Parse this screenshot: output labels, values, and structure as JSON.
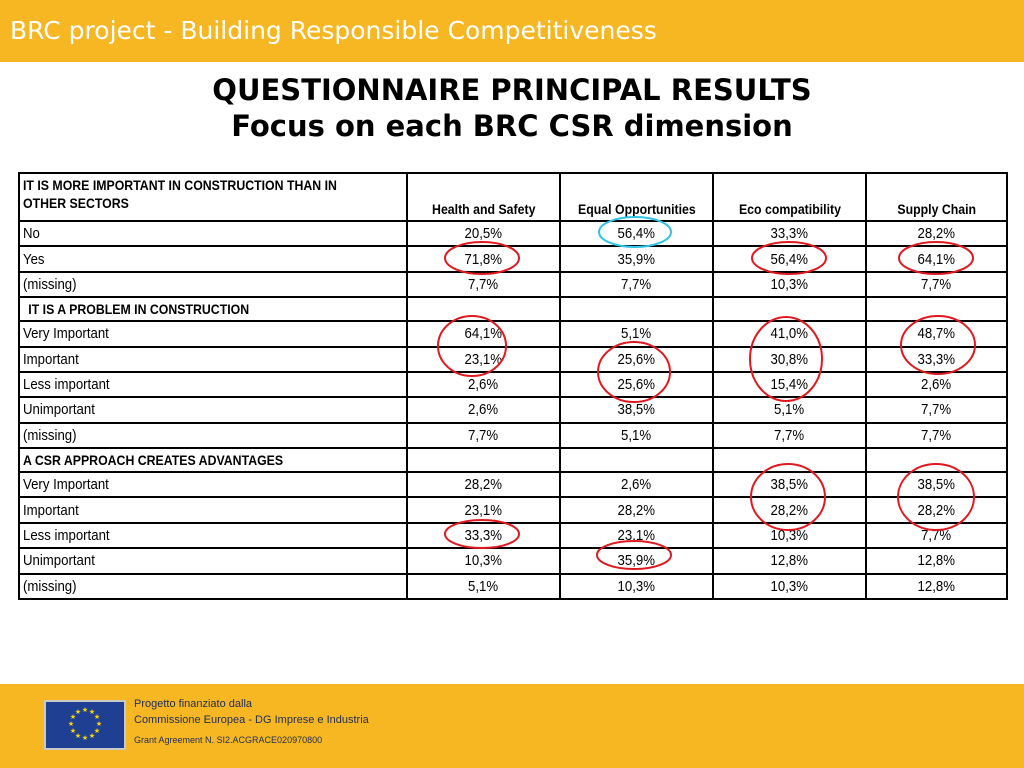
{
  "header": {
    "title": "BRC project - Building Responsible Competitiveness"
  },
  "slide": {
    "title_line1": "QUESTIONNAIRE PRINCIPAL RESULTS",
    "title_line2": "Focus on each BRC CSR dimension"
  },
  "table": {
    "columns": [
      "Health and Safety",
      "Equal Opportunities",
      "Eco compatibility",
      "Supply Chain"
    ],
    "sections": [
      {
        "question": "IT IS MORE IMPORTANT IN CONSTRUCTION THAN IN OTHER SECTORS",
        "rows": [
          {
            "label": "No",
            "values": [
              "20,5%",
              "56,4%",
              "33,3%",
              "28,2%"
            ]
          },
          {
            "label": "Yes",
            "values": [
              "71,8%",
              "35,9%",
              "56,4%",
              "64,1%"
            ]
          },
          {
            "label": "(missing)",
            "values": [
              "7,7%",
              "7,7%",
              "10,3%",
              "7,7%"
            ]
          }
        ]
      },
      {
        "question": "IT IS A PROBLEM IN CONSTRUCTION",
        "rows": [
          {
            "label": "Very Important",
            "values": [
              "64,1%",
              "5,1%",
              "41,0%",
              "48,7%"
            ]
          },
          {
            "label": "Important",
            "values": [
              "23,1%",
              "25,6%",
              "30,8%",
              "33,3%"
            ]
          },
          {
            "label": "Less important",
            "values": [
              "2,6%",
              "25,6%",
              "15,4%",
              "2,6%"
            ]
          },
          {
            "label": "Unimportant",
            "values": [
              "2,6%",
              "38,5%",
              "5,1%",
              "7,7%"
            ]
          },
          {
            "label": "(missing)",
            "values": [
              "7,7%",
              "5,1%",
              "7,7%",
              "7,7%"
            ]
          }
        ]
      },
      {
        "question": "A CSR APPROACH CREATES ADVANTAGES",
        "rows": [
          {
            "label": "Very Important",
            "values": [
              "28,2%",
              "2,6%",
              "38,5%",
              "38,5%"
            ]
          },
          {
            "label": "Important",
            "values": [
              "23,1%",
              "28,2%",
              "28,2%",
              "28,2%"
            ]
          },
          {
            "label": "Less important",
            "values": [
              "33,3%",
              "23,1%",
              "10,3%",
              "7,7%"
            ]
          },
          {
            "label": "Unimportant",
            "values": [
              "10,3%",
              "35,9%",
              "12,8%",
              "12,8%"
            ]
          },
          {
            "label": "(missing)",
            "values": [
              "5,1%",
              "10,3%",
              "10,3%",
              "12,8%"
            ]
          }
        ]
      }
    ]
  },
  "highlight_colors": {
    "red": "#e0191f",
    "cyan": "#2ec4e6"
  },
  "footer": {
    "line1": "Progetto finanziato dalla",
    "line2": "Commissione Europea - DG Imprese e Industria",
    "line3": "Grant Agreement N. SI2.ACGRACE020970800",
    "logo_icon": "eu-flag-icon"
  }
}
